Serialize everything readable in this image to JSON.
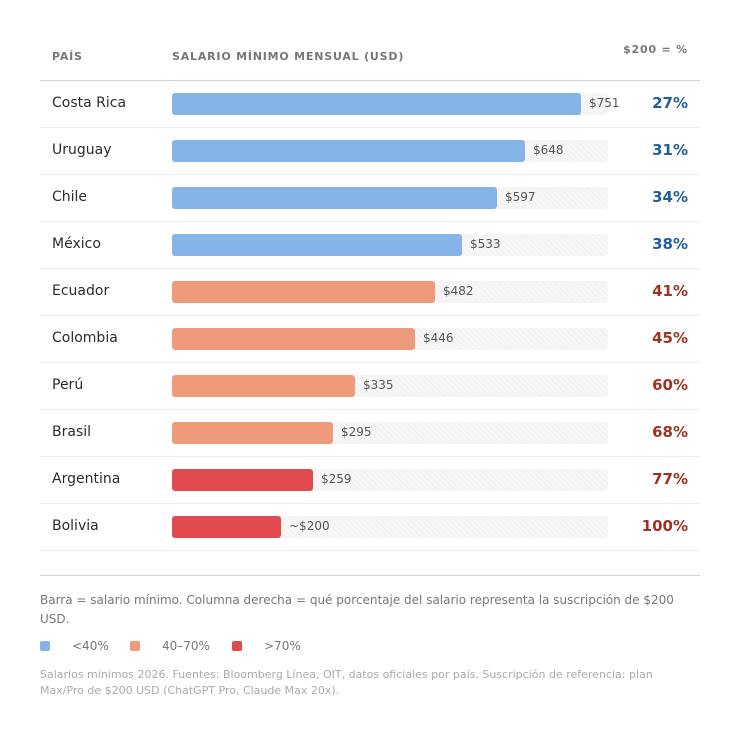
{
  "header": {
    "country": "PAÍS",
    "salary": "SALARIO MÍNIMO MENSUAL (USD)",
    "pct": "$200 = %"
  },
  "colors": {
    "low": "#85b4e8",
    "mid": "#f09a7c",
    "high": "#e24b4d",
    "pct_low": "#215f9b",
    "pct_high": "#9c3324"
  },
  "chart_data": {
    "type": "bar",
    "orientation": "horizontal",
    "xlim": [
      0,
      800
    ],
    "categories": [
      "Costa Rica",
      "Uruguay",
      "Chile",
      "México",
      "Ecuador",
      "Colombia",
      "Perú",
      "Brasil",
      "Argentina",
      "Bolivia"
    ],
    "values": [
      751,
      648,
      597,
      533,
      482,
      446,
      335,
      295,
      259,
      200
    ],
    "value_labels": [
      "$751",
      "$648",
      "$597",
      "$533",
      "$482",
      "$446",
      "$335",
      "$295",
      "$259",
      "~$200"
    ],
    "pct_labels": [
      "27%",
      "31%",
      "34%",
      "38%",
      "41%",
      "45%",
      "60%",
      "68%",
      "77%",
      "100%"
    ],
    "tiers": [
      "low",
      "low",
      "low",
      "low",
      "mid",
      "mid",
      "mid",
      "mid",
      "high",
      "high"
    ]
  },
  "note": "Barra = salario mínimo. Columna derecha = qué porcentaje del salario representa la suscripción de $200 USD.",
  "legend": [
    {
      "label": "<40%",
      "tier": "low"
    },
    {
      "label": "40–70%",
      "tier": "mid"
    },
    {
      "label": ">70%",
      "tier": "high"
    }
  ],
  "source": "Salarios mínimos 2026. Fuentes: Bloomberg Línea, OIT, datos oficiales por país. Suscripción de referencia: plan Max/Pro de $200 USD (ChatGPT Pro, Claude Max 20x)."
}
